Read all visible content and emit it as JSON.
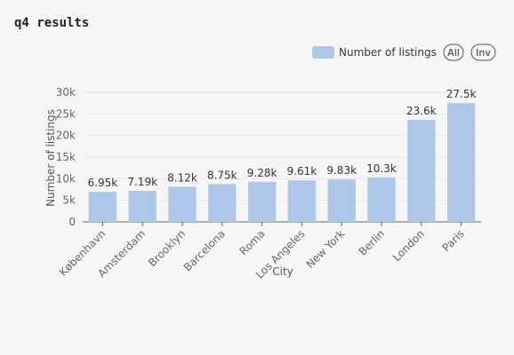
{
  "header": {
    "title": "q4 results"
  },
  "legend": {
    "series_label": "Number of listings",
    "all_button": "All",
    "inv_button": "Inv"
  },
  "colors": {
    "bar": "#aec7e8",
    "axis": "#666666",
    "grid": "#e6e6ec",
    "text": "#333333"
  },
  "chart_data": {
    "type": "bar",
    "title": "",
    "xlabel": "City",
    "ylabel": "Number of listings",
    "categories": [
      "København",
      "Amsterdam",
      "Brooklyn",
      "Barcelona",
      "Roma",
      "Los Angeles",
      "New York",
      "Berlin",
      "London",
      "Paris"
    ],
    "series": [
      {
        "name": "Number of listings",
        "values": [
          6950,
          7190,
          8120,
          8750,
          9280,
          9610,
          9830,
          10300,
          23600,
          27500
        ]
      }
    ],
    "data_labels": [
      "6.95k",
      "7.19k",
      "8.12k",
      "8.75k",
      "9.28k",
      "9.61k",
      "9.83k",
      "10.3k",
      "23.6k",
      "27.5k"
    ],
    "y_ticks": [
      0,
      5000,
      10000,
      15000,
      20000,
      25000,
      30000
    ],
    "y_tick_labels": [
      "0",
      "5k",
      "10k",
      "15k",
      "20k",
      "25k",
      "30k"
    ],
    "ylim": [
      0,
      30000
    ],
    "grid": true,
    "legend_position": "top-right"
  }
}
